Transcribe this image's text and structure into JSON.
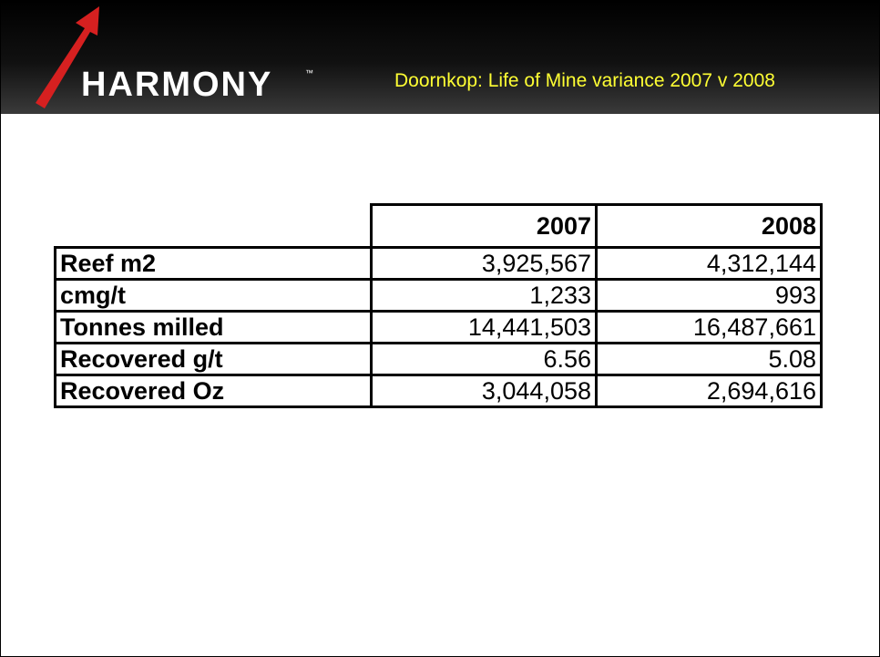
{
  "header": {
    "logo": "HARMONY",
    "trademark": "™",
    "title": "Doornkop: Life of Mine variance 2007 v 2008"
  },
  "table": {
    "columns": [
      "2007",
      "2008"
    ],
    "rows": [
      [
        "Reef m2",
        "3,925,567",
        "4,312,144"
      ],
      [
        "cmg/t",
        "1,233",
        "993"
      ],
      [
        "Tonnes milled",
        "14,441,503",
        "16,487,661"
      ],
      [
        "Recovered g/t",
        "6.56",
        "5.08"
      ],
      [
        "Recovered Oz",
        "3,044,058",
        "2,694,616"
      ]
    ]
  }
}
